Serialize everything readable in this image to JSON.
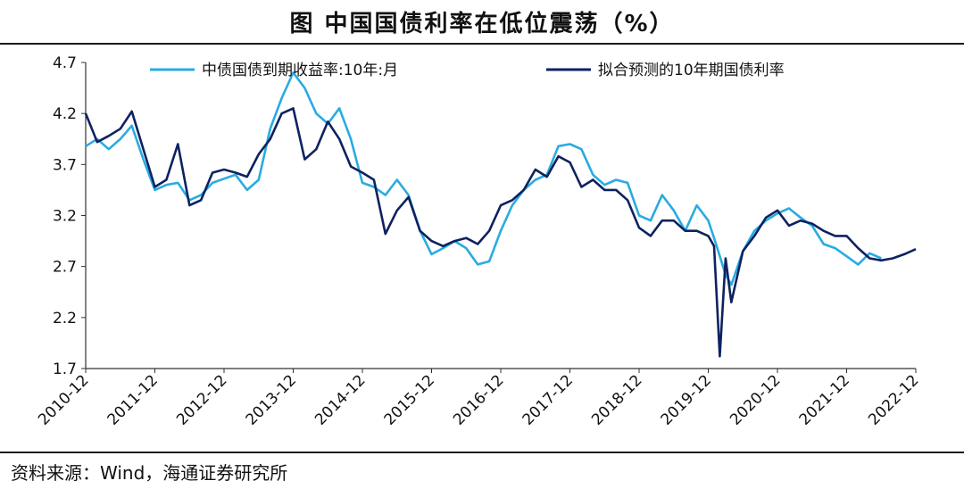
{
  "title": "图  中国国债利率在低位震荡（%）",
  "source": "资料来源：Wind，海通证券研究所",
  "colors": {
    "series_actual": "#29ABE2",
    "series_fit": "#0D2260",
    "axis": "#333333"
  },
  "chart_data": {
    "type": "line",
    "title": "图  中国国债利率在低位震荡（%）",
    "xlabel": "",
    "ylabel": "",
    "ylim": [
      1.7,
      4.7
    ],
    "yticks": [
      "4.7",
      "4.2",
      "3.7",
      "3.2",
      "2.7",
      "2.2",
      "1.7"
    ],
    "x_range": [
      "2010-12",
      "2022-12"
    ],
    "xticks": [
      "2010-12",
      "2011-12",
      "2012-12",
      "2013-12",
      "2014-12",
      "2015-12",
      "2016-12",
      "2017-12",
      "2018-12",
      "2019-12",
      "2020-12",
      "2021-12",
      "2022-12"
    ],
    "grid": false,
    "legend": "top",
    "series": [
      {
        "name": "中债国债到期收益率:10年:月",
        "points": [
          [
            "2010-12",
            3.88
          ],
          [
            "2011-02",
            3.95
          ],
          [
            "2011-04",
            3.85
          ],
          [
            "2011-06",
            3.95
          ],
          [
            "2011-08",
            4.08
          ],
          [
            "2011-10",
            3.75
          ],
          [
            "2011-12",
            3.45
          ],
          [
            "2012-02",
            3.5
          ],
          [
            "2012-04",
            3.52
          ],
          [
            "2012-06",
            3.35
          ],
          [
            "2012-08",
            3.4
          ],
          [
            "2012-10",
            3.52
          ],
          [
            "2012-12",
            3.56
          ],
          [
            "2013-02",
            3.6
          ],
          [
            "2013-04",
            3.45
          ],
          [
            "2013-06",
            3.55
          ],
          [
            "2013-08",
            4.05
          ],
          [
            "2013-10",
            4.35
          ],
          [
            "2013-12",
            4.6
          ],
          [
            "2014-02",
            4.45
          ],
          [
            "2014-04",
            4.2
          ],
          [
            "2014-06",
            4.1
          ],
          [
            "2014-08",
            4.25
          ],
          [
            "2014-10",
            3.95
          ],
          [
            "2014-12",
            3.52
          ],
          [
            "2015-02",
            3.48
          ],
          [
            "2015-04",
            3.4
          ],
          [
            "2015-06",
            3.55
          ],
          [
            "2015-08",
            3.4
          ],
          [
            "2015-10",
            3.05
          ],
          [
            "2015-12",
            2.82
          ],
          [
            "2016-02",
            2.88
          ],
          [
            "2016-04",
            2.95
          ],
          [
            "2016-06",
            2.88
          ],
          [
            "2016-08",
            2.72
          ],
          [
            "2016-10",
            2.75
          ],
          [
            "2016-12",
            3.05
          ],
          [
            "2017-02",
            3.3
          ],
          [
            "2017-04",
            3.45
          ],
          [
            "2017-06",
            3.55
          ],
          [
            "2017-08",
            3.6
          ],
          [
            "2017-10",
            3.88
          ],
          [
            "2017-12",
            3.9
          ],
          [
            "2018-02",
            3.85
          ],
          [
            "2018-04",
            3.6
          ],
          [
            "2018-06",
            3.5
          ],
          [
            "2018-08",
            3.55
          ],
          [
            "2018-10",
            3.52
          ],
          [
            "2018-12",
            3.2
          ],
          [
            "2019-02",
            3.15
          ],
          [
            "2019-04",
            3.4
          ],
          [
            "2019-06",
            3.25
          ],
          [
            "2019-08",
            3.05
          ],
          [
            "2019-10",
            3.3
          ],
          [
            "2019-12",
            3.15
          ],
          [
            "2020-01",
            2.98
          ],
          [
            "2020-03",
            2.62
          ],
          [
            "2020-04",
            2.52
          ],
          [
            "2020-06",
            2.85
          ],
          [
            "2020-08",
            3.05
          ],
          [
            "2020-10",
            3.15
          ],
          [
            "2020-12",
            3.22
          ],
          [
            "2021-02",
            3.27
          ],
          [
            "2021-04",
            3.18
          ],
          [
            "2021-06",
            3.1
          ],
          [
            "2021-08",
            2.92
          ],
          [
            "2021-10",
            2.88
          ],
          [
            "2021-12",
            2.8
          ],
          [
            "2022-02",
            2.72
          ],
          [
            "2022-04",
            2.83
          ],
          [
            "2022-06",
            2.78
          ]
        ]
      },
      {
        "name": "拟合预测的10年期国债利率",
        "points": [
          [
            "2010-12",
            4.2
          ],
          [
            "2011-02",
            3.92
          ],
          [
            "2011-04",
            3.98
          ],
          [
            "2011-06",
            4.05
          ],
          [
            "2011-08",
            4.22
          ],
          [
            "2011-10",
            3.85
          ],
          [
            "2011-12",
            3.48
          ],
          [
            "2012-02",
            3.55
          ],
          [
            "2012-04",
            3.9
          ],
          [
            "2012-06",
            3.3
          ],
          [
            "2012-08",
            3.35
          ],
          [
            "2012-10",
            3.62
          ],
          [
            "2012-12",
            3.65
          ],
          [
            "2013-02",
            3.62
          ],
          [
            "2013-04",
            3.58
          ],
          [
            "2013-06",
            3.8
          ],
          [
            "2013-08",
            3.95
          ],
          [
            "2013-10",
            4.2
          ],
          [
            "2013-12",
            4.25
          ],
          [
            "2014-02",
            3.75
          ],
          [
            "2014-04",
            3.85
          ],
          [
            "2014-06",
            4.12
          ],
          [
            "2014-08",
            3.95
          ],
          [
            "2014-10",
            3.68
          ],
          [
            "2014-12",
            3.62
          ],
          [
            "2015-02",
            3.55
          ],
          [
            "2015-04",
            3.02
          ],
          [
            "2015-06",
            3.25
          ],
          [
            "2015-08",
            3.38
          ],
          [
            "2015-10",
            3.05
          ],
          [
            "2015-12",
            2.95
          ],
          [
            "2016-02",
            2.9
          ],
          [
            "2016-04",
            2.95
          ],
          [
            "2016-06",
            2.98
          ],
          [
            "2016-08",
            2.92
          ],
          [
            "2016-10",
            3.05
          ],
          [
            "2016-12",
            3.3
          ],
          [
            "2017-02",
            3.35
          ],
          [
            "2017-04",
            3.45
          ],
          [
            "2017-06",
            3.65
          ],
          [
            "2017-08",
            3.58
          ],
          [
            "2017-10",
            3.78
          ],
          [
            "2017-12",
            3.72
          ],
          [
            "2018-02",
            3.48
          ],
          [
            "2018-04",
            3.55
          ],
          [
            "2018-06",
            3.45
          ],
          [
            "2018-08",
            3.45
          ],
          [
            "2018-10",
            3.35
          ],
          [
            "2018-12",
            3.08
          ],
          [
            "2019-02",
            3.0
          ],
          [
            "2019-04",
            3.15
          ],
          [
            "2019-06",
            3.15
          ],
          [
            "2019-08",
            3.05
          ],
          [
            "2019-10",
            3.05
          ],
          [
            "2019-12",
            3.0
          ],
          [
            "2020-01",
            2.9
          ],
          [
            "2020-02",
            1.82
          ],
          [
            "2020-03",
            2.78
          ],
          [
            "2020-04",
            2.35
          ],
          [
            "2020-06",
            2.85
          ],
          [
            "2020-08",
            3.0
          ],
          [
            "2020-10",
            3.18
          ],
          [
            "2020-12",
            3.25
          ],
          [
            "2021-02",
            3.1
          ],
          [
            "2021-04",
            3.15
          ],
          [
            "2021-06",
            3.12
          ],
          [
            "2021-08",
            3.05
          ],
          [
            "2021-10",
            3.0
          ],
          [
            "2021-12",
            3.0
          ],
          [
            "2022-02",
            2.88
          ],
          [
            "2022-04",
            2.78
          ],
          [
            "2022-06",
            2.76
          ],
          [
            "2022-08",
            2.78
          ],
          [
            "2022-10",
            2.82
          ],
          [
            "2022-12",
            2.87
          ]
        ]
      }
    ]
  }
}
